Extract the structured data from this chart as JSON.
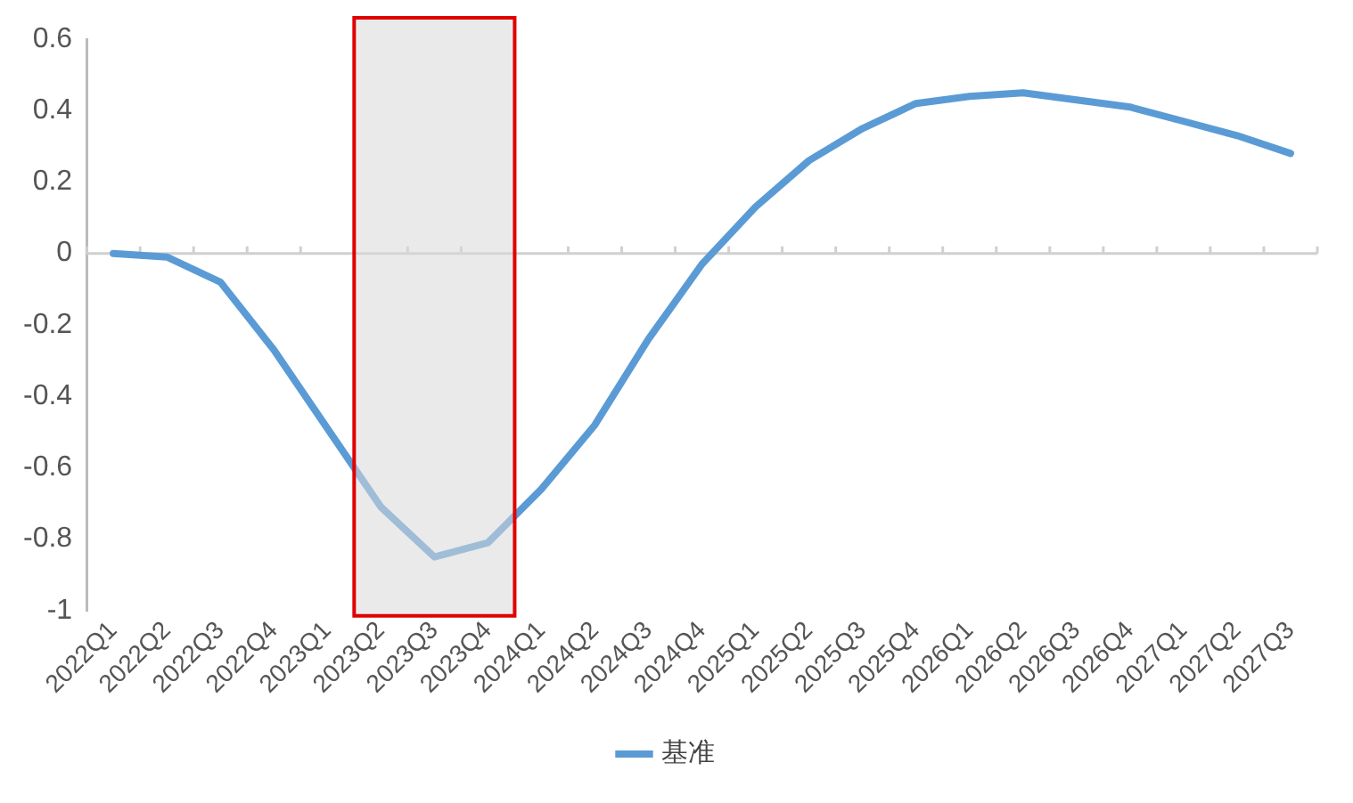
{
  "chart_data": {
    "type": "line",
    "categories": [
      "2022Q1",
      "2022Q2",
      "2022Q3",
      "2022Q4",
      "2023Q1",
      "2023Q2",
      "2023Q3",
      "2023Q4",
      "2024Q1",
      "2024Q2",
      "2024Q3",
      "2024Q4",
      "2025Q1",
      "2025Q2",
      "2025Q3",
      "2025Q4",
      "2026Q1",
      "2026Q2",
      "2026Q3",
      "2026Q4",
      "2027Q1",
      "2027Q2",
      "2027Q3"
    ],
    "series": [
      {
        "name": "基准",
        "color": "#5b9bd5",
        "values": [
          0,
          -0.01,
          -0.08,
          -0.27,
          -0.49,
          -0.71,
          -0.85,
          -0.81,
          -0.66,
          -0.48,
          -0.24,
          -0.03,
          0.13,
          0.26,
          0.35,
          0.42,
          0.44,
          0.45,
          0.43,
          0.41,
          0.37,
          0.33,
          0.28
        ]
      }
    ],
    "ylim": [
      -1,
      0.6
    ],
    "yticks": [
      -1,
      -0.8,
      -0.6,
      -0.4,
      -0.2,
      0,
      0.2,
      0.4,
      0.6
    ],
    "bands": [
      {
        "axis": "x",
        "from": "2023Q2",
        "to": "2023Q4",
        "color": "#d9d9d9"
      }
    ],
    "ref_lines": [
      {
        "axis": "y",
        "value": 0,
        "color": "#d0d0d0"
      }
    ],
    "grid": false,
    "legend": "bottom",
    "marker": "none",
    "line_style": "solid"
  }
}
